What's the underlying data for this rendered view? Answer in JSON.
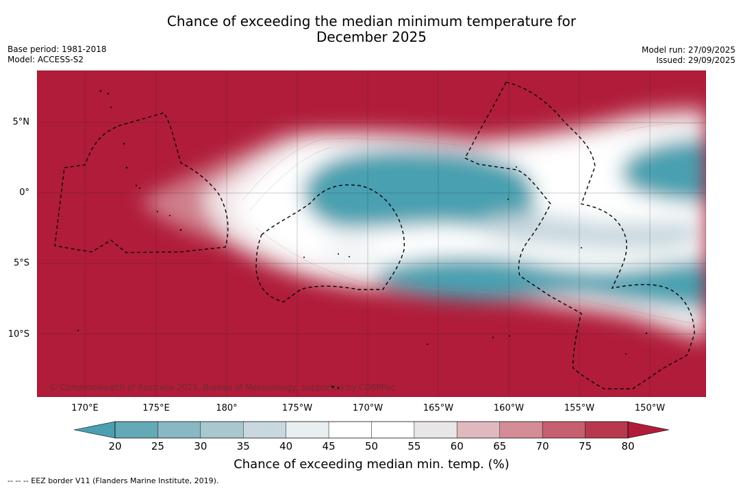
{
  "title": {
    "line1": "Chance of exceeding the median minimum temperature for",
    "line2": "December 2025"
  },
  "meta": {
    "base_period": "Base period: 1981-2018",
    "model": "Model: ACCESS-S2",
    "model_run": "Model run: 27/09/2025",
    "issued": "Issued: 29/09/2025"
  },
  "map": {
    "lat_labels": [
      "5°N",
      "0°",
      "5°S",
      "10°S"
    ],
    "lon_labels": [
      "170°E",
      "175°E",
      "180°",
      "175°W",
      "170°W",
      "165°W",
      "160°W",
      "155°W",
      "150°W"
    ],
    "copyright": "© Commonwealth of Australia 2025, Bureau of Meteorology, supported by COSPPac",
    "background_color": "#b01c3a"
  },
  "colorbar": {
    "ticks": [
      "20",
      "25",
      "30",
      "35",
      "40",
      "45",
      "50",
      "55",
      "60",
      "65",
      "70",
      "75",
      "80"
    ],
    "colors": [
      "#64a9b5",
      "#87b8c4",
      "#a9c7ce",
      "#c8d8de",
      "#e9eef1",
      "#ffffff",
      "#ffffff",
      "#e9e6e8",
      "#e0b8be",
      "#d48c96",
      "#c66070",
      "#b8394d"
    ],
    "under_color": "#4aa0b0",
    "over_color": "#b01c3a",
    "label": "Chance of exceeding median min. temp. (%)"
  },
  "legend_note": "--  --  -- EEZ border V11 (Flanders Marine Institute, 2019)."
}
